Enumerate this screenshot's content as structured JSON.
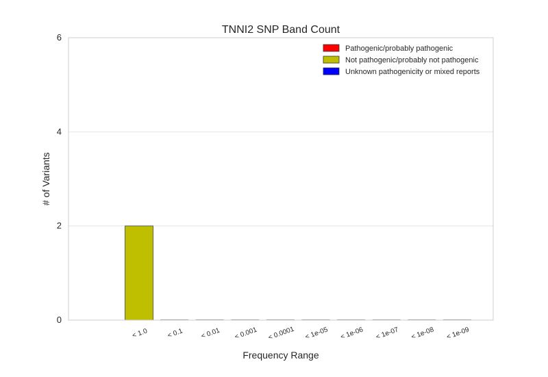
{
  "chart_data": {
    "type": "bar",
    "title": "TNNI2 SNP Band Count",
    "xlabel": "Frequency Range",
    "ylabel": "# of Variants",
    "categories": [
      "< 1.0",
      "< 0.1",
      "< 0.01",
      "< 0.001",
      "< 0.0001",
      "< 1e-05",
      "< 1e-06",
      "< 1e-07",
      "< 1e-08",
      "< 1e-09"
    ],
    "series": [
      {
        "name": "Pathogenic/probably pathogenic",
        "color": "#ff0000",
        "values": [
          0,
          0,
          0,
          0,
          0,
          0,
          0,
          0,
          0,
          0
        ]
      },
      {
        "name": "Not pathogenic/probably not pathogenic",
        "color": "#bfbf00",
        "values": [
          2,
          0,
          0,
          0,
          0,
          0,
          0,
          0,
          0,
          0
        ]
      },
      {
        "name": "Unknown pathogenicity or mixed reports",
        "color": "#0000ff",
        "values": [
          0,
          0,
          0,
          0,
          0,
          0,
          0,
          0,
          0,
          0
        ]
      }
    ],
    "stacked": true,
    "ylim": [
      0,
      6
    ],
    "yticks": [
      0,
      2,
      4,
      6
    ],
    "grid": "horizontal",
    "legend_position": "top-right"
  }
}
